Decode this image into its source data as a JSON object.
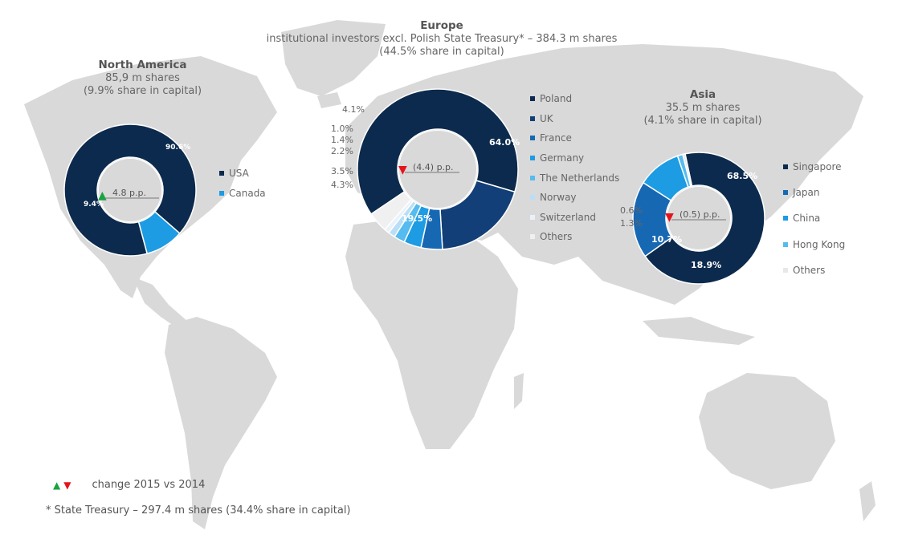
{
  "colors": {
    "map": "#d9d9d9",
    "up": "#1aa340",
    "down": "#e3151b"
  },
  "chart_data": [
    {
      "type": "donut",
      "region": "North America",
      "shares_line": "85,9 m shares",
      "capital_line": "(9.9% share in capital)",
      "change": "4.8 p.p.",
      "change_dir": "up",
      "categories": [
        "USA",
        "Canada"
      ],
      "values": [
        90.6,
        9.4
      ],
      "labels": [
        "90.6%",
        "9.4%"
      ],
      "colors": [
        "#0c2a4d",
        "#1d9be3"
      ]
    },
    {
      "type": "donut",
      "region": "Europe",
      "subtitle": "institutional investors excl. Polish State Treasury* – 384.3 m shares",
      "capital_line": "(44.5% share in capital)",
      "change": "(4.4) p.p.",
      "change_dir": "down",
      "categories": [
        "Poland",
        "UK",
        "France",
        "Germany",
        "The Netherlands",
        "Norway",
        "Switzerland",
        "Others"
      ],
      "values": [
        64.0,
        19.5,
        4.3,
        3.5,
        2.2,
        1.4,
        1.0,
        4.1
      ],
      "labels": [
        "64.0%",
        "19.5%",
        "4.3%",
        "3.5%",
        "2.2%",
        "1.4%",
        "1.0%",
        "4.1%"
      ],
      "colors": [
        "#0c2a4d",
        "#123f77",
        "#1768b3",
        "#1d9be3",
        "#56bbee",
        "#b9dff7",
        "#e9f2fa",
        "#f0f0f0"
      ]
    },
    {
      "type": "donut",
      "region": "Asia",
      "shares_line": "35.5 m shares",
      "capital_line": "(4.1% share in capital)",
      "change": "(0.5) p.p.",
      "change_dir": "down",
      "categories": [
        "Singapore",
        "Japan",
        "China",
        "Hong Kong",
        "Others"
      ],
      "values": [
        68.5,
        18.9,
        10.7,
        1.3,
        0.6
      ],
      "labels": [
        "68.5%",
        "18.9%",
        "10.7%",
        "1.3%",
        "0.6%"
      ],
      "colors": [
        "#0c2a4d",
        "#1768b3",
        "#1d9be3",
        "#56bbee",
        "#e8e8e8"
      ]
    }
  ],
  "legend_note": "change 2015 vs 2014",
  "footnote": "* State Treasury – 297.4 m shares (34.4% share in capital)"
}
